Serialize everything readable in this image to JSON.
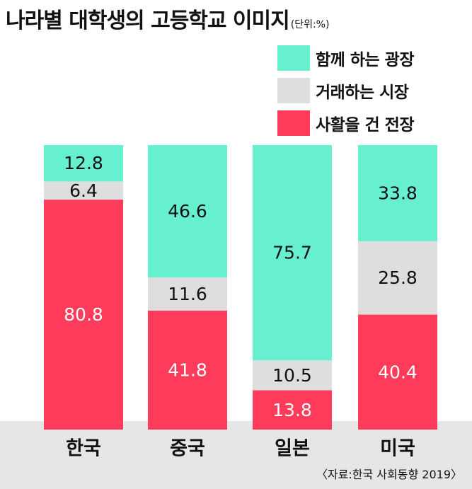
{
  "title": "나라별 대학생의 고등학교 이미지",
  "unit": "(단위:%)",
  "source": "〈자료:한국 사회동향 2019〉",
  "colors": {
    "plaza": "#66f0d0",
    "market": "#dedede",
    "battlefield": "#ff3b5c",
    "axis_band": "#e6e6e6"
  },
  "chart_data": {
    "type": "bar",
    "stacked": true,
    "normalized": true,
    "categories": [
      "한국",
      "중국",
      "일본",
      "미국"
    ],
    "series": [
      {
        "name": "함께 하는 광장",
        "values": [
          12.8,
          46.6,
          75.7,
          33.8
        ],
        "color": "#66f0d0"
      },
      {
        "name": "거래하는 시장",
        "values": [
          6.4,
          11.6,
          10.5,
          25.8
        ],
        "color": "#dedede"
      },
      {
        "name": "사활을 건 전장",
        "values": [
          80.8,
          41.8,
          13.8,
          40.4
        ],
        "color": "#ff3b5c"
      }
    ],
    "ylim": [
      0,
      100
    ],
    "grid": false,
    "legend_position": "top-right"
  }
}
